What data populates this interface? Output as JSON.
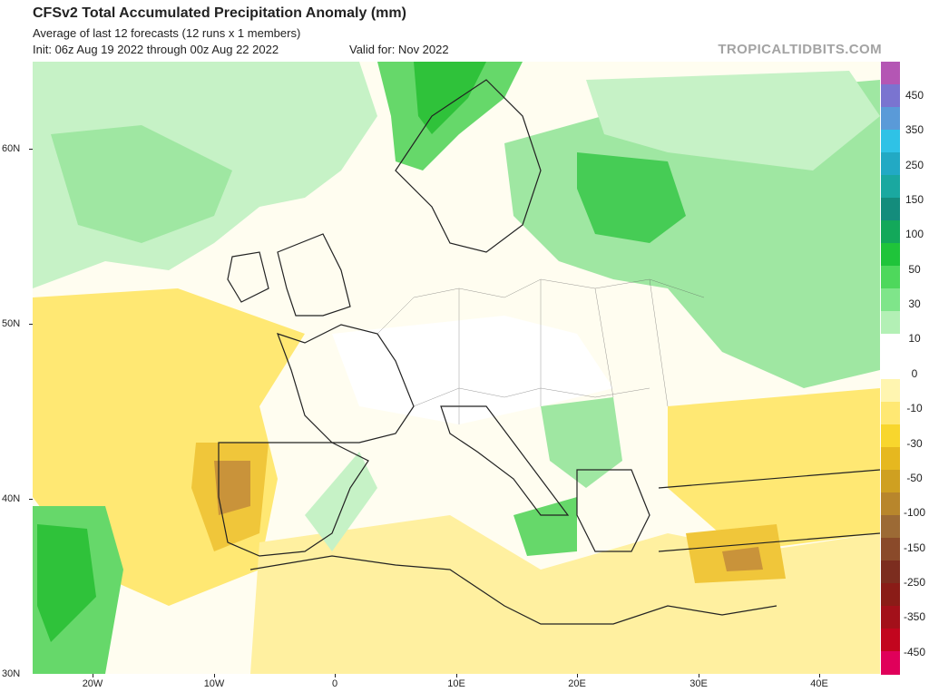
{
  "header": {
    "title": "CFSv2 Total Accumulated Precipitation Anomaly (mm)",
    "subtitle": "Average of last 12 forecasts (12 runs x 1 members)",
    "init": "Init: 06z Aug 19 2022 through 00z Aug 22 2022",
    "valid": "Valid for: Nov 2022",
    "brand": "TROPICALTIDBITS.COM"
  },
  "map": {
    "region": "Europe / Mediterranean",
    "projection": "equirectangular",
    "lon_range": [
      -25,
      45
    ],
    "lat_range": [
      30,
      65
    ],
    "lat_ticks": [
      "60N",
      "50N",
      "40N",
      "30N"
    ],
    "lon_ticks": [
      "20W",
      "10W",
      "0",
      "10E",
      "20E",
      "30E",
      "40E"
    ]
  },
  "colorbar": {
    "labels": [
      "450",
      "350",
      "250",
      "150",
      "100",
      "50",
      "30",
      "10",
      "0",
      "-10",
      "-30",
      "-50",
      "-100",
      "-150",
      "-250",
      "-350",
      "-450"
    ],
    "colors": [
      "#b456b4",
      "#7a74d0",
      "#5a9ad8",
      "#2fc2e6",
      "#22a9c4",
      "#1aa8a0",
      "#148c7c",
      "#13a85a",
      "#1fc43a",
      "#4ed85c",
      "#7fe58a",
      "#b3f0b5",
      "#ffffff",
      "#ffffff",
      "#fff5b0",
      "#ffe873",
      "#f8d62d",
      "#e6b81f",
      "#cfa021",
      "#b8862c",
      "#9c6a35",
      "#8a4a2a",
      "#7c2d1f",
      "#8a1c17",
      "#a3101a",
      "#c2051e",
      "#e0005a"
    ]
  }
}
